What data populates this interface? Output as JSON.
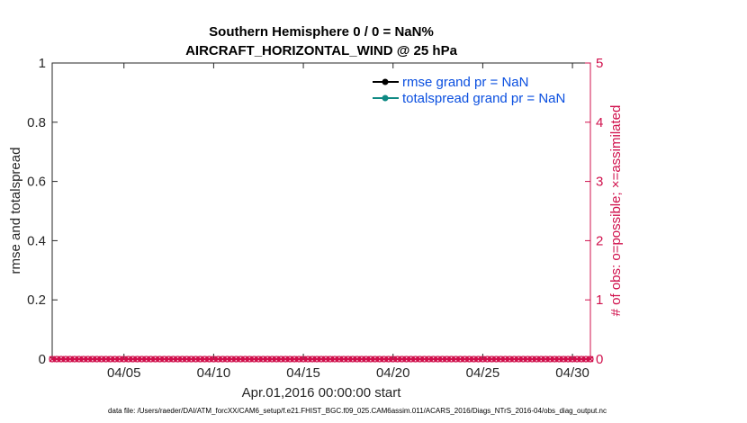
{
  "chart_data": {
    "type": "line",
    "title_line1": "Southern Hemisphere 0 / 0 = NaN%",
    "title_line2": "AIRCRAFT_HORIZONTAL_WIND @ 25 hPa",
    "ylabel": "rmse and totalspread",
    "ylabel_right": "# of obs: o=possible; ×=assimilated",
    "xlabel": "Apr.01,2016 00:00:00 start",
    "footer": "data file: /Users/raeder/DAI/ATM_forcXX/CAM6_setup/f.e21.FHIST_BGC.f09_025.CAM6assim.011/ACARS_2016/Diags_NTrS_2016-04/obs_diag_output.nc",
    "ylim": [
      0,
      1
    ],
    "ylim_right": [
      0,
      5
    ],
    "xlim": [
      "2016-04-01",
      "2016-04-31"
    ],
    "y_ticks": [
      "0",
      "0.2",
      "0.4",
      "0.6",
      "0.8",
      "1"
    ],
    "y_right_ticks": [
      "0",
      "1",
      "2",
      "3",
      "4",
      "5"
    ],
    "x_ticks": [
      "04/05",
      "04/10",
      "04/15",
      "04/20",
      "04/25",
      "04/30"
    ],
    "x_tick_days": [
      5,
      10,
      15,
      20,
      25,
      30
    ],
    "legend": [
      {
        "label": "rmse grand pr = NaN",
        "color": "#000000"
      },
      {
        "label": "totalspread grand pr = NaN",
        "color": "#0f8a84"
      }
    ],
    "obs_series": {
      "name": "# of obs",
      "color": "#d0104c",
      "markers": [
        "o",
        "×"
      ],
      "start_day": 1,
      "end_day": 31,
      "step_days": 0.25,
      "value": 0
    },
    "grid": false,
    "legend_placement": "top-right"
  }
}
